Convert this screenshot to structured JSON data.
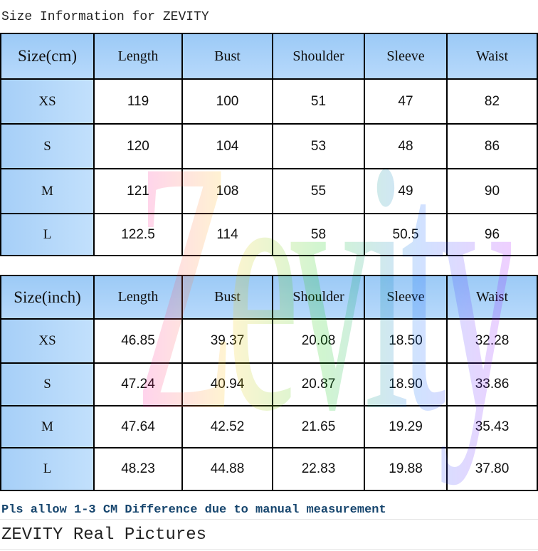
{
  "header": {
    "title": "Size Information for ZEVITY"
  },
  "watermark": "Zevity",
  "tables": [
    {
      "columns": [
        "Size(cm)",
        "Length",
        "Bust",
        "Shoulder",
        "Sleeve",
        "Waist"
      ],
      "rows": [
        [
          "XS",
          "119",
          "100",
          "51",
          "47",
          "82"
        ],
        [
          "S",
          "120",
          "104",
          "53",
          "48",
          "86"
        ],
        [
          "M",
          "121",
          "108",
          "55",
          "49",
          "90"
        ],
        [
          "L",
          "122.5",
          "114",
          "58",
          "50.5",
          "96"
        ]
      ]
    },
    {
      "columns": [
        "Size(inch)",
        "Length",
        "Bust",
        "Shoulder",
        "Sleeve",
        "Waist"
      ],
      "rows": [
        [
          "XS",
          "46.85",
          "39.37",
          "20.08",
          "18.50",
          "32.28"
        ],
        [
          "S",
          "47.24",
          "40.94",
          "20.87",
          "18.90",
          "33.86"
        ],
        [
          "M",
          "47.64",
          "42.52",
          "21.65",
          "19.29",
          "35.43"
        ],
        [
          "L",
          "48.23",
          "44.88",
          "22.83",
          "19.88",
          "37.80"
        ]
      ]
    }
  ],
  "note": "Pls allow 1-3 CM Difference due to manual measurement",
  "footer": {
    "title": "ZEVITY Real Pictures"
  }
}
